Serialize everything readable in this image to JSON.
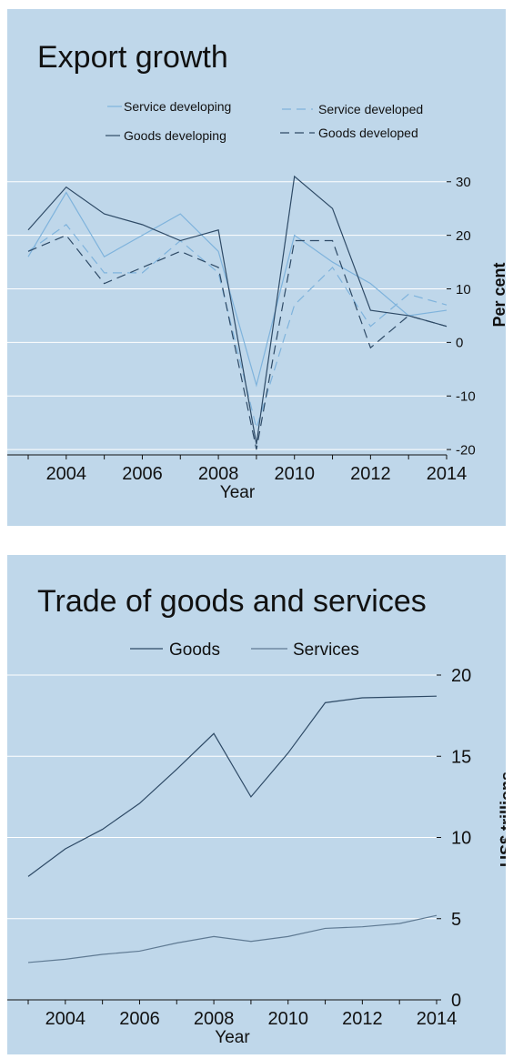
{
  "chart_data": [
    {
      "type": "line",
      "title": "Export growth",
      "xlabel": "Year",
      "ylabel": "Per cent",
      "x": [
        2003,
        2004,
        2005,
        2006,
        2007,
        2008,
        2009,
        2010,
        2011,
        2012,
        2013,
        2014
      ],
      "xticks": [
        "2004",
        "2006",
        "2008",
        "2010",
        "2012",
        "2014"
      ],
      "yticks": [
        "30",
        "20",
        "10",
        "0",
        "-10",
        "-20"
      ],
      "xlim": [
        2003,
        2014
      ],
      "ylim": [
        -21,
        32
      ],
      "grid": true,
      "legend_position": "top",
      "series": [
        {
          "name": "Service developing",
          "color": "#7fb3dc",
          "dash": "solid",
          "values": [
            16,
            28,
            16,
            20,
            24,
            17,
            -8,
            20,
            15,
            11,
            5,
            6
          ]
        },
        {
          "name": "Service developed",
          "color": "#7fb3dc",
          "dash": "dashed",
          "values": [
            17,
            22,
            13,
            13,
            19,
            13,
            -16,
            7,
            14,
            3,
            9,
            7
          ]
        },
        {
          "name": "Goods developing",
          "color": "#2e4a66",
          "dash": "solid",
          "values": [
            21,
            29,
            24,
            22,
            19,
            21,
            -19,
            31,
            25,
            6,
            5,
            3
          ]
        },
        {
          "name": "Goods developed",
          "color": "#2e4a66",
          "dash": "dashed",
          "values": [
            17,
            20,
            11,
            14,
            17,
            14,
            -20,
            19,
            19,
            -1,
            5,
            3
          ]
        }
      ]
    },
    {
      "type": "line",
      "title": "Trade of goods and services",
      "xlabel": "Year",
      "ylabel": "US$ trillions",
      "x": [
        2003,
        2004,
        2005,
        2006,
        2007,
        2008,
        2009,
        2010,
        2011,
        2012,
        2013,
        2014
      ],
      "xticks": [
        "2004",
        "2006",
        "2008",
        "2010",
        "2012",
        "2014"
      ],
      "yticks": [
        "20",
        "15",
        "10",
        "5",
        "0"
      ],
      "xlim": [
        2003,
        2014
      ],
      "ylim": [
        0,
        20
      ],
      "grid": true,
      "legend_position": "top",
      "series": [
        {
          "name": "Goods",
          "color": "#2e4a66",
          "dash": "solid",
          "values": [
            7.6,
            9.3,
            10.5,
            12.1,
            14.2,
            16.4,
            12.5,
            15.2,
            18.3,
            18.6,
            18.65,
            18.7
          ]
        },
        {
          "name": "Services",
          "color": "#5f7a93",
          "dash": "solid",
          "values": [
            2.3,
            2.5,
            2.8,
            3.0,
            3.5,
            3.9,
            3.6,
            3.9,
            4.4,
            4.5,
            4.7,
            5.2
          ]
        }
      ]
    }
  ]
}
